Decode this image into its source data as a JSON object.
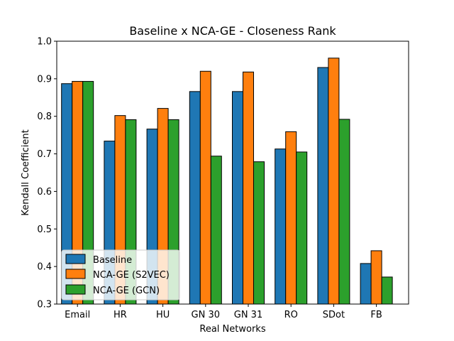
{
  "chart_data": {
    "type": "bar",
    "title": "Baseline x NCA-GE - Closeness Rank",
    "xlabel": "Real Networks",
    "ylabel": "Kendall Coefficient",
    "ylim": [
      0.3,
      1.0
    ],
    "yticks": [
      "0.3",
      "0.4",
      "0.5",
      "0.6",
      "0.7",
      "0.8",
      "0.9",
      "1.0"
    ],
    "categories": [
      "Email",
      "HR",
      "HU",
      "GN 30",
      "GN 31",
      "RO",
      "SDot",
      "FB"
    ],
    "series": [
      {
        "name": "Baseline",
        "color": "#1f77b4",
        "values": [
          0.887,
          0.734,
          0.766,
          0.866,
          0.866,
          0.713,
          0.93,
          0.408
        ]
      },
      {
        "name": "NCA-GE (S2VEC)",
        "color": "#ff7f0e",
        "values": [
          0.893,
          0.802,
          0.821,
          0.92,
          0.918,
          0.759,
          0.955,
          0.442
        ]
      },
      {
        "name": "NCA-GE (GCN)",
        "color": "#2ca02c",
        "values": [
          0.893,
          0.791,
          0.791,
          0.694,
          0.679,
          0.705,
          0.792,
          0.372
        ]
      }
    ],
    "legend": {
      "location": "lower-left"
    },
    "grid": false
  }
}
